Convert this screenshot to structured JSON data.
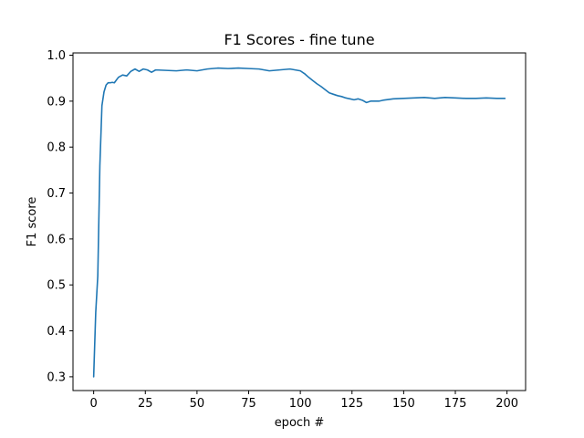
{
  "chart_data": {
    "type": "line",
    "title": "F1 Scores - fine tune",
    "xlabel": "epoch #",
    "ylabel": "F1 score",
    "xlim": [
      -10,
      209
    ],
    "ylim": [
      0.27,
      1.005
    ],
    "xticks": [
      0,
      25,
      50,
      75,
      100,
      125,
      150,
      175,
      200
    ],
    "yticks": [
      0.3,
      0.4,
      0.5,
      0.6,
      0.7,
      0.8,
      0.9,
      1.0
    ],
    "ytick_labels": [
      "0.3",
      "0.4",
      "0.5",
      "0.6",
      "0.7",
      "0.8",
      "0.9",
      "1.0"
    ],
    "grid": false,
    "legend": null,
    "series": [
      {
        "color": "#1f77b4",
        "x": [
          0,
          1,
          2,
          3,
          4,
          5,
          6,
          7,
          8,
          9,
          10,
          12,
          14,
          16,
          18,
          20,
          22,
          24,
          26,
          28,
          30,
          35,
          40,
          45,
          50,
          55,
          60,
          65,
          70,
          75,
          80,
          85,
          90,
          95,
          100,
          102,
          104,
          106,
          108,
          110,
          112,
          114,
          116,
          118,
          120,
          122,
          124,
          126,
          128,
          130,
          132,
          134,
          136,
          138,
          140,
          145,
          150,
          155,
          160,
          165,
          170,
          175,
          180,
          185,
          190,
          195,
          199
        ],
        "y": [
          0.3,
          0.44,
          0.52,
          0.76,
          0.89,
          0.92,
          0.935,
          0.94,
          0.94,
          0.941,
          0.94,
          0.952,
          0.957,
          0.955,
          0.965,
          0.97,
          0.965,
          0.97,
          0.968,
          0.963,
          0.968,
          0.967,
          0.966,
          0.968,
          0.966,
          0.97,
          0.972,
          0.971,
          0.972,
          0.971,
          0.97,
          0.966,
          0.968,
          0.97,
          0.966,
          0.96,
          0.952,
          0.945,
          0.938,
          0.932,
          0.925,
          0.918,
          0.915,
          0.912,
          0.91,
          0.907,
          0.905,
          0.903,
          0.905,
          0.902,
          0.897,
          0.9,
          0.9,
          0.9,
          0.902,
          0.905,
          0.906,
          0.907,
          0.908,
          0.906,
          0.908,
          0.907,
          0.906,
          0.906,
          0.907,
          0.906,
          0.906
        ]
      }
    ]
  }
}
